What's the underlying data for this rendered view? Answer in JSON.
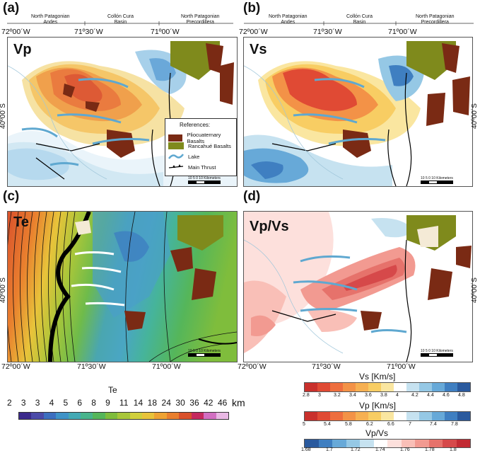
{
  "panels": [
    {
      "id": "a",
      "label": "(a)",
      "title": "Vp"
    },
    {
      "id": "b",
      "label": "(b)",
      "title": "Vs"
    },
    {
      "id": "c",
      "label": "(c)",
      "title": "Te"
    },
    {
      "id": "d",
      "label": "(d)",
      "title": "Vp/Vs"
    }
  ],
  "regions": {
    "north_patagonian_andes": [
      "North Patagonian",
      "Andes"
    ],
    "collon_cura_basin": [
      "Collón Cura",
      "Basin"
    ],
    "north_patagonian_precordillera": [
      "North Patagonian",
      "Precordillera"
    ]
  },
  "longitude_ticks": [
    "72º00´W",
    "71º30´W",
    "71º00´W"
  ],
  "longitude_ticks_bottom": [
    "72º00´W",
    "71º30´W",
    "71º00´W"
  ],
  "latitude_tick": "40º00´S",
  "references": {
    "title": "References:",
    "items": [
      {
        "label": "Pliocuaternary Basalts",
        "color": "#7a2a14"
      },
      {
        "label": "Rancahué Basalts",
        "color": "#7f8a1c"
      },
      {
        "label": "Lake",
        "color": "#5fa8d0"
      },
      {
        "label": "Main Thrust",
        "color": "#000000"
      }
    ]
  },
  "scalebar_text": "10  5  0       10 Kilometers",
  "te_colorbar": {
    "title": "Te",
    "unit": "km",
    "values": [
      "2",
      "3",
      "3",
      "4",
      "5",
      "6",
      "8",
      "9",
      "11",
      "14",
      "18",
      "24",
      "30",
      "36",
      "42",
      "46"
    ],
    "colors": [
      "#3b2a8c",
      "#4b4aa8",
      "#3d6fbf",
      "#3f93c7",
      "#43a9b4",
      "#48b48c",
      "#55b65a",
      "#7fbd3c",
      "#a8c63a",
      "#d0cf3c",
      "#e8c33a",
      "#eea233",
      "#e97f2e",
      "#d9512c",
      "#c52a5e",
      "#d26fc2",
      "#e9b8e4"
    ]
  },
  "vs_colorbar": {
    "title": "Vs [Km/s]",
    "values": [
      "2.8",
      "3",
      "3.2",
      "3.4",
      "3.6",
      "3.8",
      "4",
      "4.2",
      "4.4",
      "4.6",
      "4.8"
    ],
    "colors": [
      "#c9302c",
      "#e04a34",
      "#ee6e3e",
      "#f39247",
      "#f6b052",
      "#f8cd63",
      "#fae6a0",
      "#ffffff",
      "#c6e2f0",
      "#95c8e5",
      "#67a9d8",
      "#3f7fc1",
      "#2a5a9e"
    ]
  },
  "vp_colorbar": {
    "title": "Vp [Km/s]",
    "values": [
      "5",
      "5.4",
      "5.8",
      "6.2",
      "6.6",
      "7",
      "7.4",
      "7.8"
    ],
    "colors": [
      "#c9302c",
      "#e04a34",
      "#ee6e3e",
      "#f39247",
      "#f6b052",
      "#f8cd63",
      "#fae6a0",
      "#ffffff",
      "#c6e2f0",
      "#95c8e5",
      "#67a9d8",
      "#3f7fc1",
      "#2a5a9e"
    ]
  },
  "vpvs_colorbar": {
    "title": "Vp/Vs",
    "values": [
      "1.68",
      "1.7",
      "1.72",
      "1.74",
      "1.76",
      "1.78",
      "1.8"
    ],
    "colors": [
      "#2a5a9e",
      "#3f7fc1",
      "#67a9d8",
      "#95c8e5",
      "#c6e2f0",
      "#ffffff",
      "#fde0dc",
      "#f9bfb7",
      "#f29a91",
      "#e6726b",
      "#d6494a",
      "#c22a33"
    ]
  }
}
